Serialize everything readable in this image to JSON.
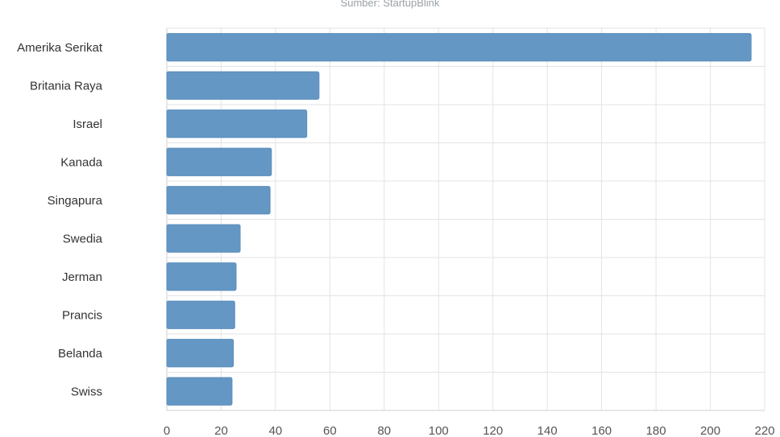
{
  "chart_data": {
    "type": "bar",
    "orientation": "horizontal",
    "title": "",
    "subtitle": "Sumber: StartupBlink",
    "xlabel": "",
    "ylabel": "",
    "categories": [
      "Amerika Serikat",
      "Britania Raya",
      "Israel",
      "Kanada",
      "Singapura",
      "Swedia",
      "Jerman",
      "Prancis",
      "Belanda",
      "Swiss"
    ],
    "values": [
      215,
      56,
      51.5,
      38.5,
      38,
      27,
      25.5,
      25,
      24.5,
      24
    ],
    "xlim": [
      0,
      220
    ],
    "xticks": [
      0,
      20,
      40,
      60,
      80,
      100,
      120,
      140,
      160,
      180,
      200,
      220
    ],
    "grid": true,
    "legend": "none",
    "bar_color": "#6497c3"
  }
}
